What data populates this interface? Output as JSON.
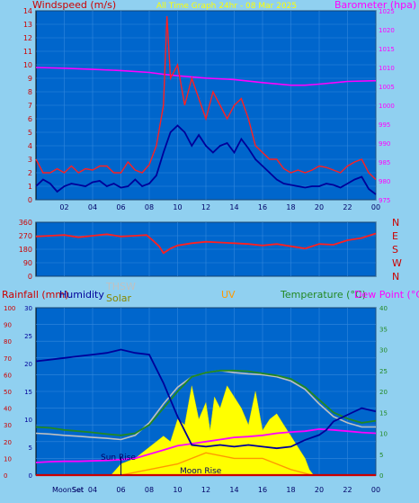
{
  "colors": {
    "background": "#90d0f0",
    "plot_bg": "#0066cc",
    "grid": "#3388dd",
    "wind_gust": "#ff2020",
    "wind_avg": "#000099",
    "barometer": "#ff00ff",
    "direction": "#ff2020",
    "humidity": "#000099",
    "temperature": "#228822",
    "dew_point": "#ff00ff",
    "thsw": "#c0c0c0",
    "solar": "#ffff00",
    "uv": "#ff9900",
    "rain": "#cc0000"
  },
  "chart_data": [
    {
      "type": "line",
      "title": "All Time Graph 24hr - 08 Mar 2025",
      "ylabel": "Windspeed (m/s)",
      "y2label": "Barometer (hpa)",
      "ylim": [
        0,
        14
      ],
      "y2lim": [
        975,
        1025
      ],
      "yticks": [
        "0",
        "1",
        "2",
        "3",
        "4",
        "5",
        "6",
        "7",
        "8",
        "9",
        "10",
        "11",
        "12",
        "13",
        "14"
      ],
      "y2ticks": [
        "975",
        "980",
        "985",
        "990",
        "995",
        "1000",
        "1005",
        "1010",
        "1015",
        "1020",
        "1025"
      ],
      "xlim": [
        0,
        24
      ],
      "xticks": [
        "02",
        "04",
        "06",
        "08",
        "10",
        "12",
        "14",
        "16",
        "18",
        "20",
        "22",
        "00"
      ],
      "grid": true,
      "series": [
        {
          "name": "gust",
          "x": [
            0,
            0.5,
            1,
            1.5,
            2,
            2.5,
            3,
            3.5,
            4,
            4.5,
            5,
            5.5,
            6,
            6.5,
            7,
            7.5,
            8,
            8.5,
            9,
            9.25,
            9.5,
            10,
            10.5,
            11,
            11.5,
            12,
            12.5,
            13,
            13.5,
            14,
            14.5,
            15,
            15.5,
            16,
            16.5,
            17,
            17.5,
            18,
            18.5,
            19,
            19.5,
            20,
            20.5,
            21,
            21.5,
            22,
            22.5,
            23,
            23.5,
            24
          ],
          "y": [
            3,
            2,
            2,
            2.3,
            2,
            2.5,
            2,
            2.3,
            2.2,
            2.5,
            2.5,
            2,
            2,
            2.8,
            2.2,
            2,
            2.6,
            4,
            7,
            13.6,
            9,
            10,
            7,
            9,
            7.5,
            6,
            8,
            7,
            6,
            7,
            7.5,
            6,
            4,
            3.5,
            3,
            3,
            2.3,
            2,
            2.2,
            2,
            2.2,
            2.5,
            2.4,
            2.2,
            2,
            2.5,
            2.8,
            3,
            2,
            1.5
          ]
        },
        {
          "name": "average",
          "x": [
            0,
            0.5,
            1,
            1.5,
            2,
            2.5,
            3,
            3.5,
            4,
            4.5,
            5,
            5.5,
            6,
            6.5,
            7,
            7.5,
            8,
            8.5,
            9,
            9.5,
            10,
            10.5,
            11,
            11.5,
            12,
            12.5,
            13,
            13.5,
            14,
            14.5,
            15,
            15.5,
            16,
            16.5,
            17,
            17.5,
            18,
            18.5,
            19,
            19.5,
            20,
            20.5,
            21,
            21.5,
            22,
            22.5,
            23,
            23.5,
            24
          ],
          "y": [
            1,
            1.5,
            1.2,
            0.6,
            1,
            1.2,
            1.1,
            1,
            1.3,
            1.4,
            1,
            1.2,
            0.9,
            1,
            1.5,
            1,
            1.2,
            1.8,
            3.5,
            5,
            5.5,
            5,
            4,
            4.8,
            4,
            3.5,
            4,
            4.2,
            3.5,
            4.5,
            3.8,
            3,
            2.5,
            2,
            1.5,
            1.2,
            1.1,
            1,
            0.9,
            1,
            1,
            1.2,
            1.1,
            0.9,
            1.2,
            1.5,
            1.7,
            0.8,
            0.4
          ]
        },
        {
          "name": "barometer",
          "x": [
            0,
            2,
            4,
            6,
            8,
            9,
            10,
            12,
            14,
            16,
            18,
            19,
            20,
            22,
            24
          ],
          "y": [
            1010,
            1009.8,
            1009.5,
            1009.2,
            1008.7,
            1008.2,
            1007.8,
            1007.2,
            1006.8,
            1006,
            1005.3,
            1005.3,
            1005.6,
            1006.3,
            1006.5
          ]
        }
      ]
    },
    {
      "type": "scatter",
      "ylabel_right": [
        "N",
        "W",
        "S",
        "E",
        "N"
      ],
      "ylim": [
        0,
        360
      ],
      "yticks": [
        "0",
        "90",
        "180",
        "270",
        "360"
      ],
      "xlim": [
        0,
        24
      ],
      "series": [
        {
          "name": "direction",
          "x": [
            0,
            1,
            2,
            3,
            4,
            5,
            6,
            7,
            7.8,
            8.3,
            8.7,
            9,
            9.5,
            10,
            11,
            12,
            13,
            14,
            15,
            16,
            17,
            18,
            19,
            20,
            21,
            22,
            23,
            23.5,
            24
          ],
          "y": [
            265,
            270,
            275,
            260,
            270,
            280,
            265,
            270,
            275,
            235,
            200,
            155,
            185,
            205,
            220,
            230,
            225,
            220,
            215,
            205,
            215,
            200,
            185,
            215,
            210,
            240,
            255,
            270,
            285
          ]
        }
      ]
    },
    {
      "type": "line",
      "labels": [
        "Rainfall (mm)",
        "Humidity",
        "THSW",
        "Solar",
        "UV",
        "Temperature (°C)",
        "Dew Point (°C)"
      ],
      "ylim_rain": [
        0,
        100
      ],
      "yticks_rain": [
        "0",
        "10",
        "20",
        "30",
        "40",
        "50",
        "60",
        "70",
        "80",
        "90",
        "100"
      ],
      "ylim_hum": [
        0,
        30
      ],
      "yticks_hum": [
        "0",
        "5",
        "10",
        "15",
        "20",
        "25",
        "30"
      ],
      "ylim_temp": [
        0,
        40
      ],
      "yticks_temp": [
        "0",
        "5",
        "10",
        "15",
        "20",
        "25",
        "30",
        "35",
        "40"
      ],
      "xlim": [
        0,
        24
      ],
      "xticks": [
        "02",
        "04",
        "06",
        "08",
        "10",
        "12",
        "14",
        "16",
        "18",
        "20",
        "22",
        "00"
      ],
      "annotations": [
        "Sun Rise",
        "Moon Rise",
        "MoonSet",
        "Set"
      ],
      "series": [
        {
          "name": "humidity",
          "axis": "rain",
          "x": [
            0,
            1,
            2,
            3,
            4,
            5,
            6,
            7,
            8,
            9,
            9.5,
            10,
            11,
            12,
            13,
            14,
            15,
            16,
            17,
            18,
            19,
            20,
            20.5,
            21,
            22,
            23,
            24
          ],
          "y": [
            68,
            69,
            70,
            71,
            72,
            73,
            75,
            73,
            72,
            55,
            45,
            35,
            18,
            17,
            18,
            17,
            18,
            17,
            16,
            17,
            21,
            24,
            27,
            32,
            36,
            40,
            38
          ]
        },
        {
          "name": "temperature",
          "axis": "temp",
          "x": [
            0,
            1,
            2,
            3,
            4,
            5,
            6,
            7,
            8,
            9,
            10,
            11,
            12,
            13,
            14,
            15,
            16,
            17,
            18,
            19,
            20,
            21,
            22,
            23,
            24
          ],
          "y": [
            11.5,
            11.3,
            10.8,
            10.5,
            10.2,
            9.8,
            9.5,
            10,
            12,
            16,
            20,
            23.5,
            24.5,
            25,
            25,
            24.8,
            24.3,
            23.8,
            23,
            21,
            18,
            15,
            13.5,
            12.5,
            13
          ]
        },
        {
          "name": "dew_point",
          "axis": "temp",
          "x": [
            0,
            1,
            2,
            3,
            4,
            5,
            6,
            7,
            8,
            9,
            10,
            11,
            12,
            13,
            14,
            15,
            16,
            17,
            18,
            19,
            20,
            21,
            22,
            23,
            24
          ],
          "y": [
            3,
            3.2,
            3.3,
            3.3,
            3.4,
            3.5,
            3.7,
            4,
            5,
            6,
            7,
            7.5,
            8,
            8.5,
            9,
            9.2,
            9.5,
            10,
            10.3,
            10.5,
            11,
            10.8,
            10.5,
            10.2,
            10
          ]
        },
        {
          "name": "thsw",
          "axis": "temp",
          "x": [
            0,
            1,
            2,
            3,
            4,
            5,
            6,
            7,
            8,
            9,
            10,
            11,
            12,
            13,
            14,
            15,
            16,
            17,
            18,
            19,
            20,
            21,
            22,
            23,
            24
          ],
          "y": [
            10,
            9.8,
            9.5,
            9.3,
            9,
            8.8,
            8.5,
            9.5,
            12.5,
            17,
            21,
            23.5,
            24.5,
            25,
            24.5,
            24.2,
            24,
            23.5,
            22.5,
            20.5,
            17,
            14,
            12.5,
            11.5,
            11.5
          ]
        },
        {
          "name": "solar",
          "axis": "hum",
          "x": [
            5.3,
            6,
            7,
            8,
            9,
            9.5,
            10,
            10.5,
            11,
            11.5,
            12,
            12.3,
            12.6,
            13,
            13.5,
            14,
            14.5,
            15,
            15.5,
            16,
            16.5,
            17,
            17.5,
            18,
            18.5,
            19,
            19.3,
            19.6
          ],
          "y": [
            0,
            2,
            3,
            5,
            7,
            6,
            10,
            9,
            16,
            10,
            13,
            8,
            14,
            12,
            16,
            14,
            12,
            9,
            15,
            8,
            10,
            11,
            9,
            7,
            5,
            3,
            1,
            0
          ]
        },
        {
          "name": "uv",
          "axis": "hum",
          "x": [
            6,
            8,
            10,
            12,
            14,
            16,
            18,
            19.5
          ],
          "y": [
            0,
            1,
            2,
            4,
            3,
            3,
            1,
            0
          ]
        },
        {
          "name": "rain",
          "axis": "rain",
          "x": [
            0,
            24
          ],
          "y": [
            0,
            0
          ]
        }
      ]
    }
  ]
}
